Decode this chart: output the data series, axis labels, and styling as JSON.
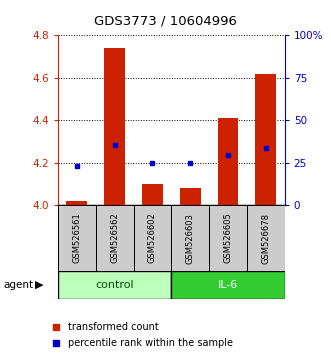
{
  "title": "GDS3773 / 10604996",
  "samples": [
    "GSM526561",
    "GSM526562",
    "GSM526602",
    "GSM526603",
    "GSM526605",
    "GSM526678"
  ],
  "red_values": [
    4.02,
    4.74,
    4.1,
    4.08,
    4.41,
    4.62
  ],
  "blue_values": [
    4.185,
    4.285,
    4.2,
    4.2,
    4.235,
    4.27
  ],
  "ylim_left": [
    4.0,
    4.8
  ],
  "yticks_left": [
    4.0,
    4.2,
    4.4,
    4.6,
    4.8
  ],
  "yticks_right": [
    0,
    25,
    50,
    75,
    100
  ],
  "ytick_labels_right": [
    "0",
    "25",
    "50",
    "75",
    "100%"
  ],
  "bar_color": "#cc2200",
  "dot_color": "#0000cc",
  "control_color": "#bbffbb",
  "il6_color": "#33cc33",
  "bar_width": 0.55,
  "bar_bottom": 4.0,
  "left_tick_color": "#cc2200",
  "right_tick_color": "#0000cc"
}
